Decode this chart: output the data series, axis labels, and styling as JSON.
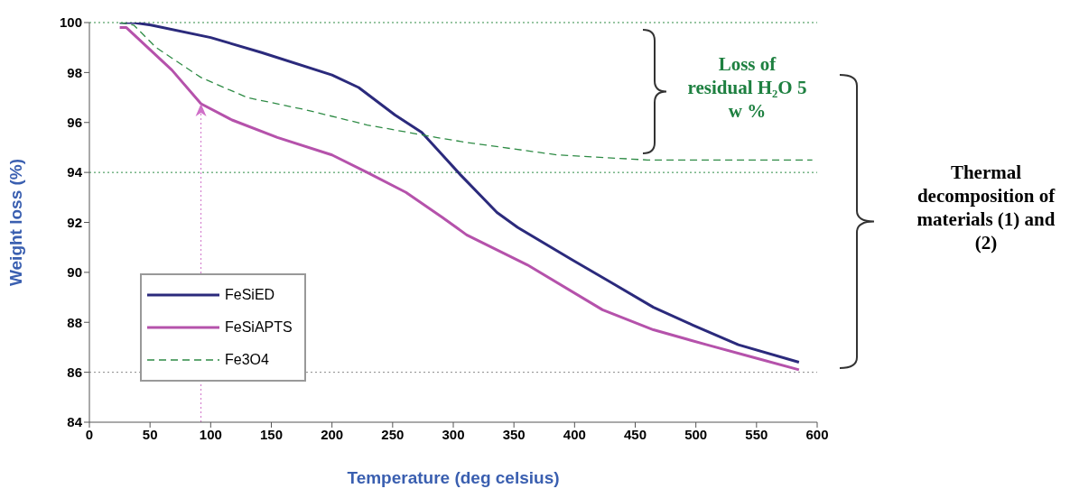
{
  "chart_data": {
    "type": "line",
    "xlabel": "Temperature (deg celsius)",
    "ylabel": "Weight loss (%)",
    "xlim": [
      0,
      600
    ],
    "xticks": [
      0,
      50,
      100,
      150,
      200,
      250,
      300,
      350,
      400,
      450,
      500,
      550,
      600
    ],
    "ylim": [
      84,
      100
    ],
    "yticks": [
      84,
      86,
      88,
      90,
      92,
      94,
      96,
      98,
      100
    ],
    "legend": "bottom left",
    "marker": "none",
    "series": [
      {
        "name": "FeSiED",
        "color": "#2b2a7c",
        "line_style": "solid",
        "x": [
          25,
          36.5,
          50.6,
          100,
          142,
          200,
          222,
          252,
          274,
          291,
          306,
          336,
          353,
          398,
          430,
          465,
          497,
          535,
          585
        ],
        "values": [
          100,
          100,
          99.9,
          99.4,
          98.8,
          97.9,
          97.4,
          96.3,
          95.6,
          94.7,
          93.9,
          92.4,
          91.8,
          90.5,
          89.6,
          88.6,
          87.9,
          87.1,
          86.4
        ]
      },
      {
        "name": "FeSiAPTS",
        "color": "#b552ab",
        "line_style": "solid",
        "x": [
          25,
          30.5,
          68,
          92,
          117.6,
          155,
          200,
          229,
          261,
          291,
          311,
          361,
          423,
          465,
          509,
          547,
          585
        ],
        "values": [
          99.8,
          99.8,
          98.1,
          96.75,
          96.1,
          95.4,
          94.7,
          94.0,
          93.2,
          92.2,
          91.5,
          90.3,
          88.5,
          87.7,
          87.1,
          86.6,
          86.1
        ]
      },
      {
        "name": "Fe3O4",
        "color": "#2e8b45",
        "line_style": "dashed",
        "x": [
          25,
          36.5,
          55,
          92,
          130,
          179,
          229,
          286,
          311,
          386,
          460,
          535,
          596
        ],
        "values": [
          100,
          99.9,
          99.0,
          97.8,
          97.0,
          96.5,
          95.9,
          95.4,
          95.2,
          94.7,
          94.5,
          94.5,
          94.5
        ]
      }
    ],
    "ref_lines": [
      {
        "axis": "y",
        "value": 100,
        "color": "#2e8b45",
        "line_style": "dotted"
      },
      {
        "axis": "y",
        "value": 94,
        "color": "#2e8b45",
        "line_style": "dotted"
      },
      {
        "axis": "y",
        "value": 86,
        "color": "#888888",
        "line_style": "dotted"
      },
      {
        "axis": "x",
        "value": 92,
        "color": "#d070c8",
        "line_style": "dotted"
      }
    ],
    "annotations": [
      "Loss of residual H₂O 5 w %",
      "Thermal decomposition of materials (1) and (2)"
    ]
  }
}
